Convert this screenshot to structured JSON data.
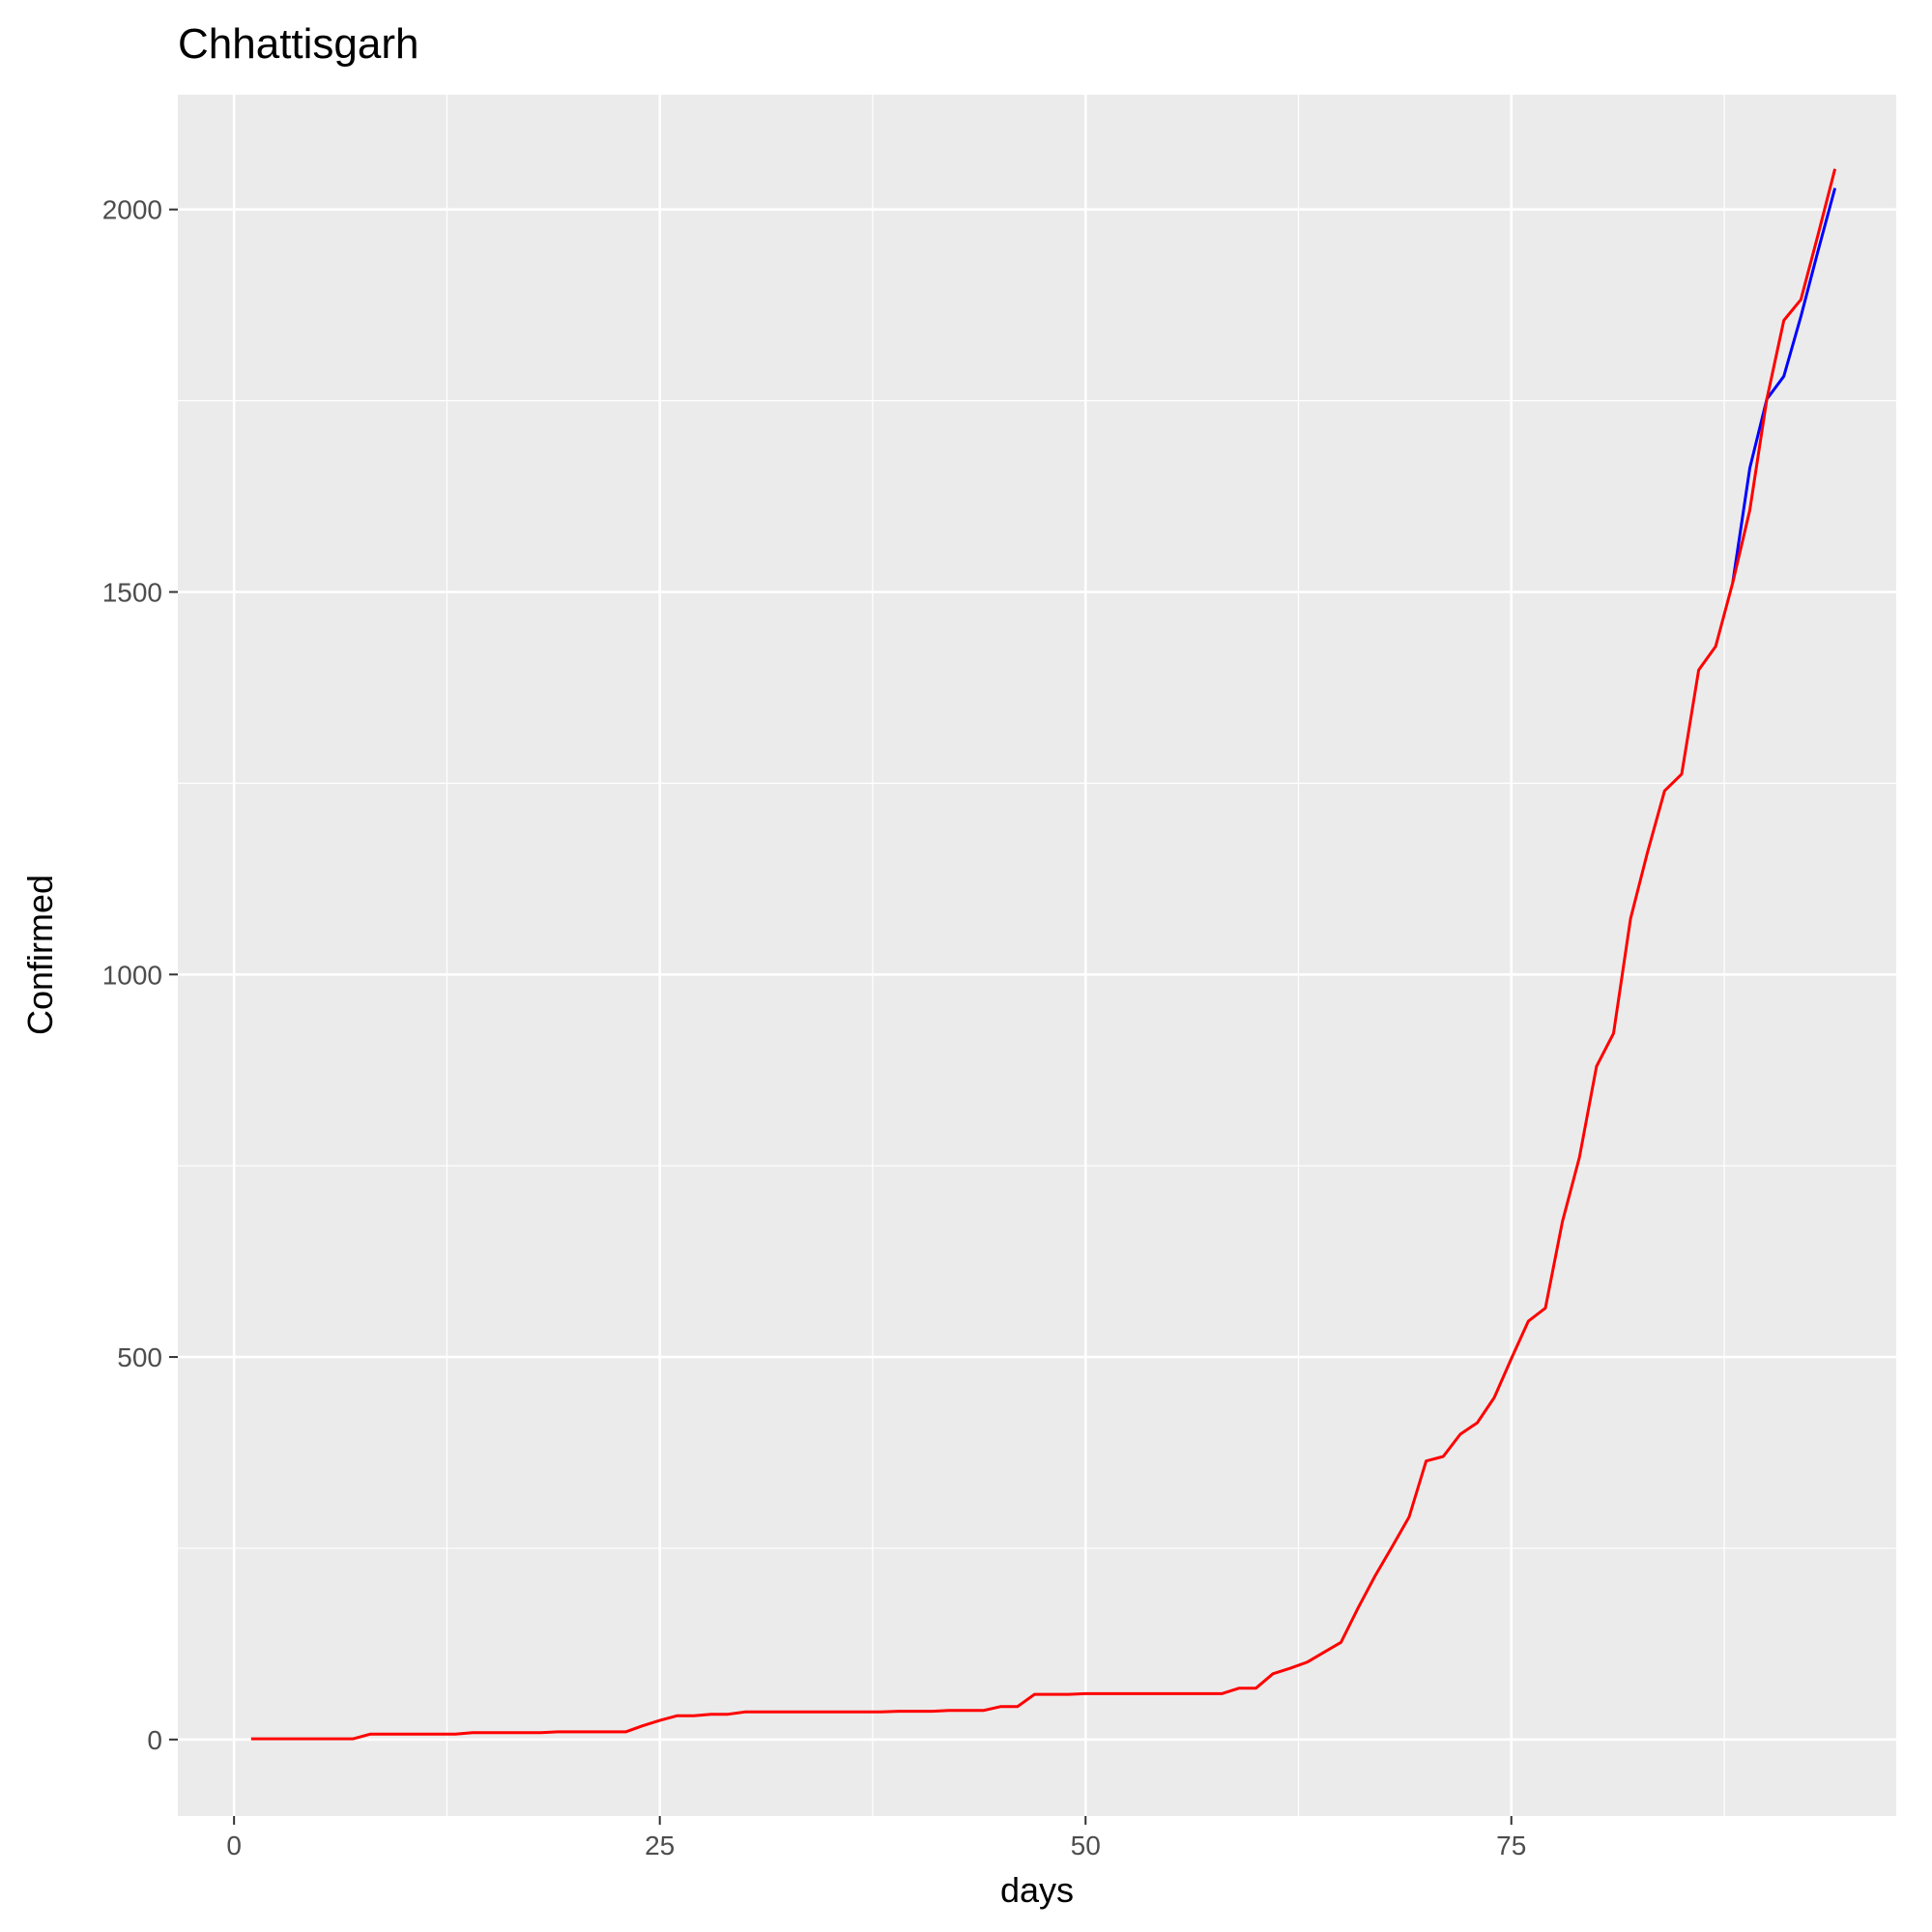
{
  "chart_data": {
    "type": "line",
    "title": "Chhattisgarh",
    "xlabel": "days",
    "ylabel": "Confirmed",
    "xlim": [
      -3.3,
      97.6
    ],
    "ylim": [
      -100,
      2150
    ],
    "x_ticks": [
      0,
      25,
      50,
      75
    ],
    "y_ticks": [
      0,
      500,
      1000,
      1500,
      2000
    ],
    "grid": true,
    "panel_background": "#ebebeb",
    "series": [
      {
        "color": "#0000ff",
        "x": [
          88,
          89,
          90,
          91,
          92,
          93,
          94
        ],
        "y": [
          1512,
          1662,
          1752,
          1782,
          1860,
          1945,
          2028
        ]
      },
      {
        "color": "#ff0000",
        "x": [
          1,
          2,
          3,
          4,
          5,
          6,
          7,
          8,
          9,
          10,
          11,
          12,
          13,
          14,
          15,
          16,
          17,
          18,
          19,
          20,
          21,
          22,
          23,
          24,
          25,
          26,
          27,
          28,
          29,
          30,
          31,
          32,
          33,
          34,
          35,
          36,
          37,
          38,
          39,
          40,
          41,
          42,
          43,
          44,
          45,
          46,
          47,
          48,
          49,
          50,
          51,
          52,
          53,
          54,
          55,
          56,
          57,
          58,
          59,
          60,
          61,
          62,
          63,
          64,
          65,
          66,
          67,
          68,
          69,
          70,
          71,
          72,
          73,
          74,
          75,
          76,
          77,
          78,
          79,
          80,
          81,
          82,
          83,
          84,
          85,
          86,
          87,
          88,
          89,
          90,
          91,
          92,
          93,
          94
        ],
        "y": [
          1,
          1,
          1,
          1,
          1,
          1,
          1,
          7,
          7,
          7,
          7,
          7,
          7,
          9,
          9,
          9,
          9,
          9,
          10,
          10,
          10,
          10,
          10,
          18,
          25,
          31,
          31,
          33,
          33,
          36,
          36,
          36,
          36,
          36,
          36,
          36,
          36,
          36,
          37,
          37,
          37,
          38,
          38,
          38,
          43,
          43,
          59,
          59,
          59,
          60,
          60,
          60,
          60,
          60,
          60,
          60,
          60,
          60,
          67,
          67,
          86,
          93,
          101,
          114,
          127,
          172,
          214,
          252,
          291,
          364,
          370,
          399,
          414,
          447,
          498,
          547,
          564,
          677,
          761,
          880,
          923,
          1073,
          1160,
          1240,
          1262,
          1398,
          1429,
          1512,
          1607,
          1752,
          1855,
          1882,
          1966,
          2053
        ]
      }
    ]
  }
}
